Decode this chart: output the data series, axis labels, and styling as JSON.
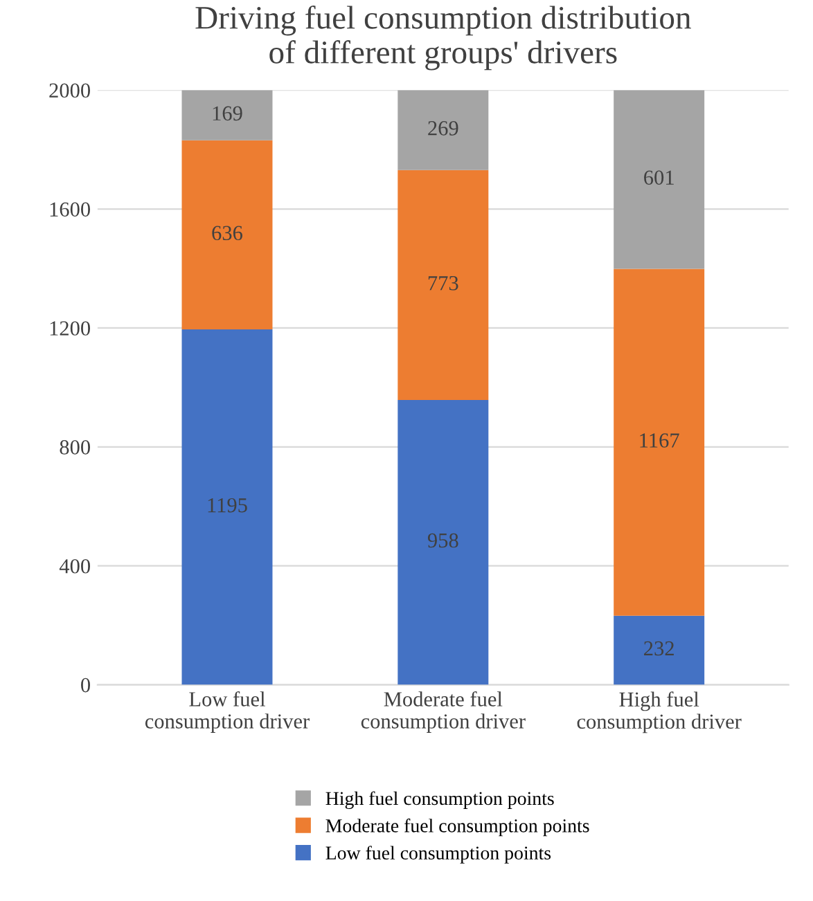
{
  "chart_data": {
    "type": "bar",
    "title": "Driving fuel consumption distribution\nof different groups' drivers",
    "categories": [
      "Low fuel\nconsumption driver",
      "Moderate fuel\nconsumption driver",
      "High fuel\nconsumption driver"
    ],
    "series": [
      {
        "name": "Low fuel consumption points",
        "color": "#4472c4",
        "values": [
          1195,
          958,
          232
        ]
      },
      {
        "name": "Moderate fuel consumption points",
        "color": "#ed7d31",
        "values": [
          636,
          773,
          1167
        ]
      },
      {
        "name": "High fuel consumption points",
        "color": "#a5a5a5",
        "values": [
          169,
          269,
          601
        ]
      }
    ],
    "stacked": true,
    "data_labels": true,
    "ylim": [
      0,
      2000
    ],
    "yticks": [
      0,
      400,
      800,
      1200,
      1600,
      2000
    ],
    "grid": "y",
    "legend": "bottom"
  }
}
